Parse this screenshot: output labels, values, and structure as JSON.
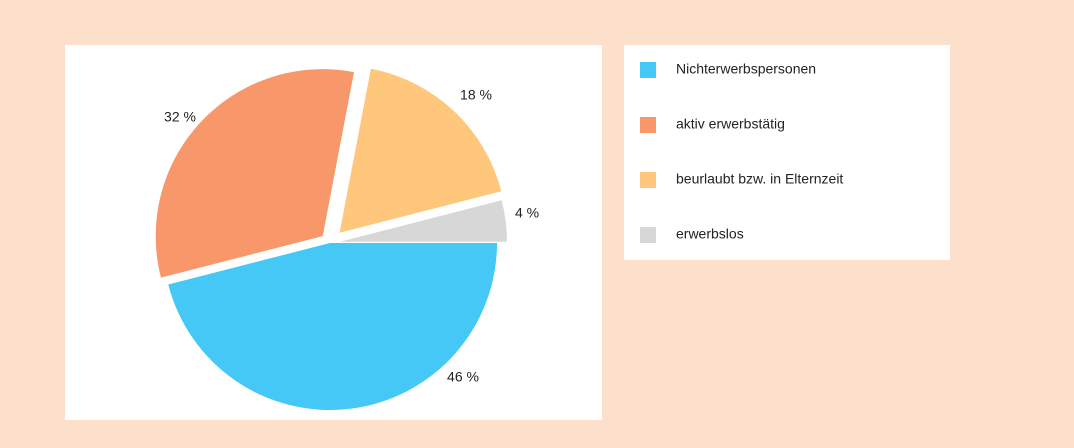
{
  "chart_data": {
    "type": "pie",
    "categories": [
      "Nichterwerbspersonen",
      "aktiv erwerbstätig",
      "beurlaubt bzw. in Elternzeit",
      "erwerbslos"
    ],
    "values": [
      46,
      32,
      18,
      4
    ],
    "value_labels": [
      "46 %",
      "32 %",
      "18 %",
      "4 %"
    ],
    "colors": [
      "#45c8f5",
      "#f7976a",
      "#fec77b",
      "#d7d7d7"
    ],
    "legend": "right"
  }
}
